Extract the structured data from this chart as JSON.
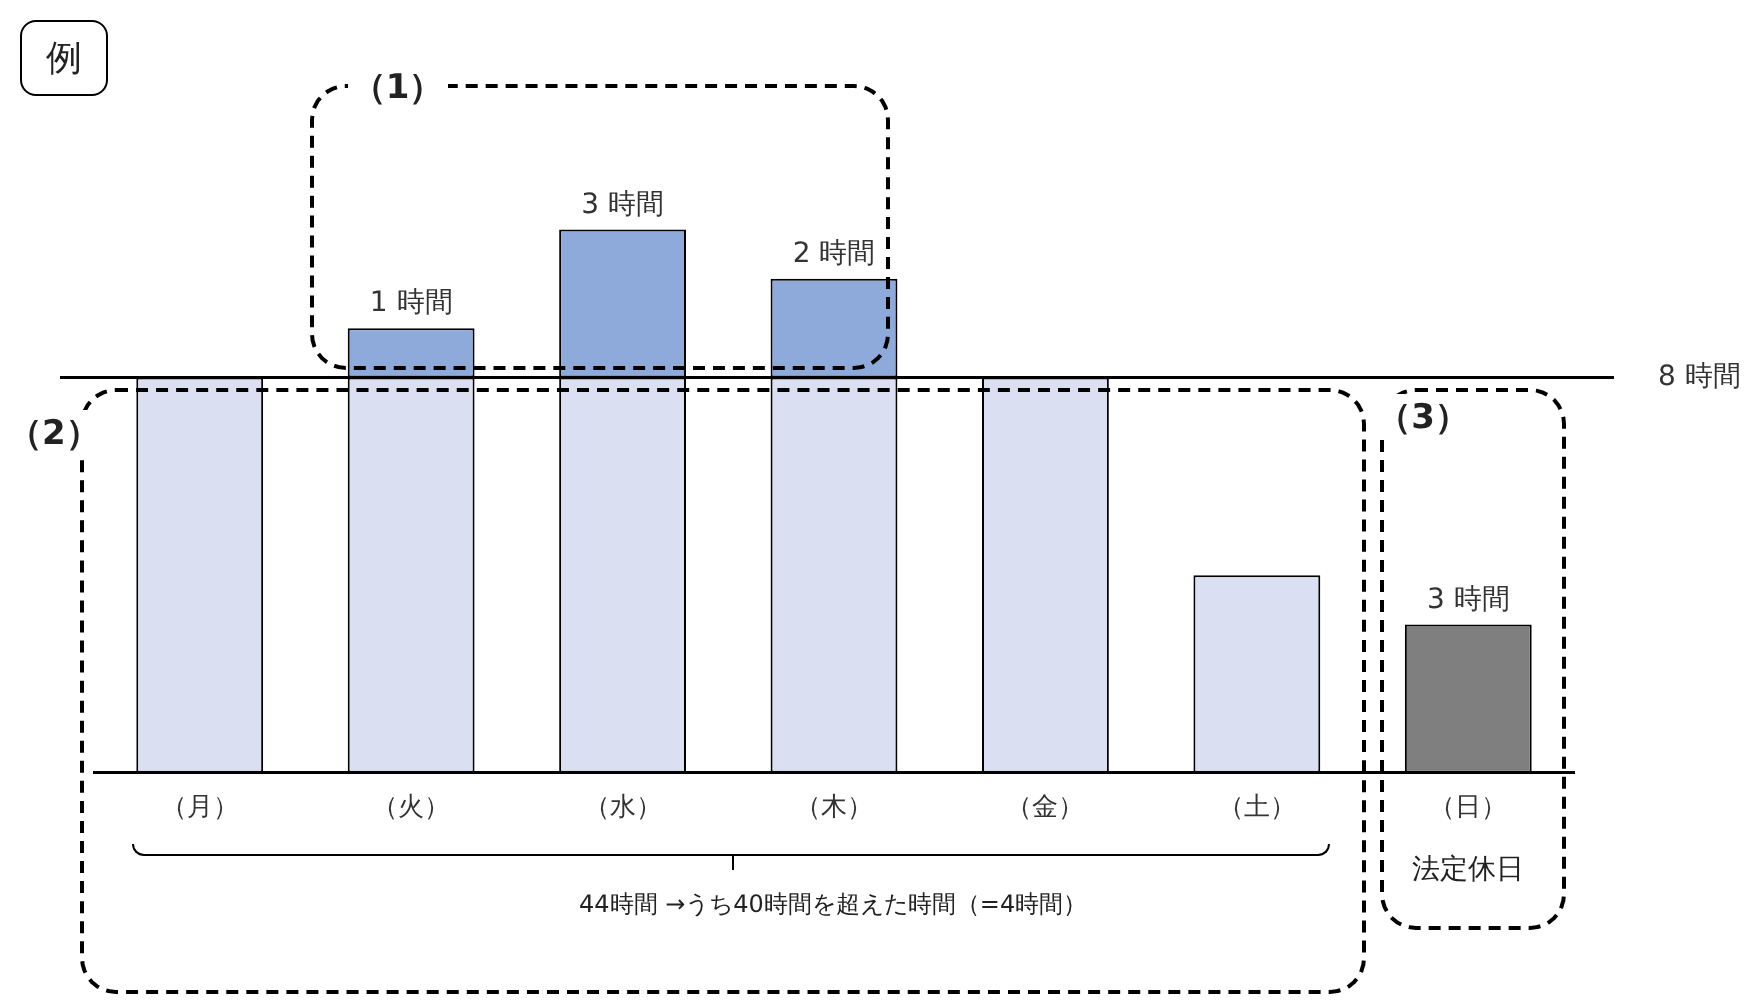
{
  "chart_data": {
    "type": "bar",
    "stacked": true,
    "categories": [
      "（月）",
      "（火）",
      "（水）",
      "（木）",
      "（金）",
      "（土）",
      "（日）"
    ],
    "series": [
      {
        "color": "#dae0f2",
        "values": [
          8,
          8,
          8,
          8,
          8,
          4,
          null
        ]
      },
      {
        "color": "#8eaadb",
        "values": [
          null,
          1,
          3,
          2,
          null,
          null,
          null
        ],
        "value_labels": [
          null,
          "1 時間",
          "3 時間",
          "2 時間",
          null,
          null,
          null
        ]
      },
      {
        "color": "#7f7f7f",
        "values": [
          null,
          null,
          null,
          null,
          null,
          null,
          3
        ],
        "value_labels": [
          null,
          null,
          null,
          null,
          null,
          null,
          "3 時間"
        ]
      }
    ],
    "ref_lines": [
      {
        "axis": "y",
        "value": 8,
        "label": "8 時間"
      }
    ],
    "annotations": [
      "例",
      "（1）",
      "（2）",
      "（3）",
      "法定休日",
      "44時間 →うち40時間を超えた時間（=4時間）"
    ]
  }
}
